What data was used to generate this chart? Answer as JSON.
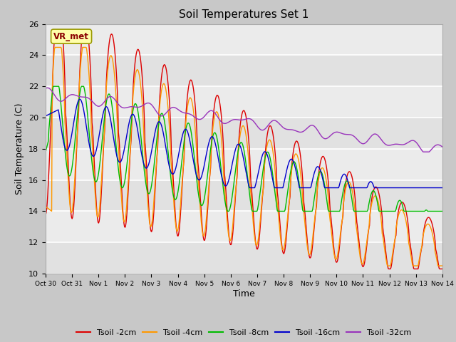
{
  "title": "Soil Temperatures Set 1",
  "xlabel": "Time",
  "ylabel": "Soil Temperature (C)",
  "ylim": [
    10,
    26
  ],
  "xlim": [
    0,
    15
  ],
  "fig_bg_color": "#c8c8c8",
  "plot_bg_color": "#ebebeb",
  "grid_bg_alt": "#d8d8d8",
  "line_colors": {
    "Tsoil -2cm": "#dd0000",
    "Tsoil -4cm": "#ff9900",
    "Tsoil -8cm": "#00bb00",
    "Tsoil -16cm": "#0000cc",
    "Tsoil -32cm": "#9933bb"
  },
  "annotation_text": "VR_met",
  "yticks": [
    10,
    12,
    14,
    16,
    18,
    20,
    22,
    24,
    26
  ],
  "xtick_labels": [
    "Oct 30",
    "Oct 31",
    "Nov 1",
    "Nov 2",
    "Nov 3",
    "Nov 4",
    "Nov 5",
    "Nov 6",
    "Nov 7",
    "Nov 8",
    "Nov 9",
    "Nov 10",
    "Nov 11",
    "Nov 12",
    "Nov 13",
    "Nov 14"
  ],
  "xtick_positions": [
    0,
    1,
    2,
    3,
    4,
    5,
    6,
    7,
    8,
    9,
    10,
    11,
    12,
    13,
    14,
    15
  ]
}
